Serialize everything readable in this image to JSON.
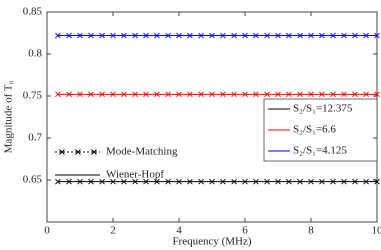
{
  "chart_data": {
    "type": "line",
    "xlabel": "Frequency (MHz)",
    "ylabel": "Magnitude of T₀",
    "x": [
      0.33,
      0.67,
      1,
      1.33,
      1.67,
      2,
      2.33,
      2.67,
      3,
      3.33,
      3.67,
      4,
      4.33,
      4.67,
      5,
      5.33,
      5.67,
      6,
      6.33,
      6.67,
      7,
      7.33,
      7.67,
      8,
      8.33,
      8.67,
      9,
      9.33,
      9.67,
      10
    ],
    "series": [
      {
        "name": "S₂/S₁=12.375",
        "color": "#000000",
        "values": [
          0.648,
          0.648,
          0.648,
          0.648,
          0.648,
          0.648,
          0.648,
          0.648,
          0.648,
          0.648,
          0.648,
          0.648,
          0.648,
          0.648,
          0.648,
          0.648,
          0.648,
          0.648,
          0.648,
          0.648,
          0.648,
          0.648,
          0.648,
          0.648,
          0.648,
          0.648,
          0.648,
          0.648,
          0.648,
          0.648
        ]
      },
      {
        "name": "S₂/S₁=6.6",
        "color": "#ff0000",
        "values": [
          0.752,
          0.752,
          0.752,
          0.752,
          0.752,
          0.752,
          0.752,
          0.752,
          0.752,
          0.752,
          0.752,
          0.752,
          0.752,
          0.752,
          0.752,
          0.752,
          0.752,
          0.752,
          0.752,
          0.752,
          0.752,
          0.752,
          0.752,
          0.752,
          0.752,
          0.752,
          0.752,
          0.752,
          0.752,
          0.752
        ]
      },
      {
        "name": "S₂/S₁=4.125",
        "color": "#0000ff",
        "values": [
          0.822,
          0.822,
          0.822,
          0.822,
          0.822,
          0.822,
          0.822,
          0.822,
          0.822,
          0.822,
          0.822,
          0.822,
          0.822,
          0.822,
          0.822,
          0.822,
          0.822,
          0.822,
          0.822,
          0.822,
          0.822,
          0.822,
          0.822,
          0.822,
          0.822,
          0.822,
          0.822,
          0.822,
          0.822,
          0.822
        ]
      }
    ],
    "method_legend": [
      "Mode-Matching",
      "Wiener-Hopf"
    ],
    "legend_loc": "lower right",
    "xlim": [
      0,
      10
    ],
    "xticks": [
      0,
      2,
      4,
      6,
      8,
      10
    ],
    "ylim": [
      0.6,
      0.85
    ],
    "yticks": [
      0.65,
      0.7,
      0.75,
      0.8,
      0.85
    ],
    "grid": false
  }
}
